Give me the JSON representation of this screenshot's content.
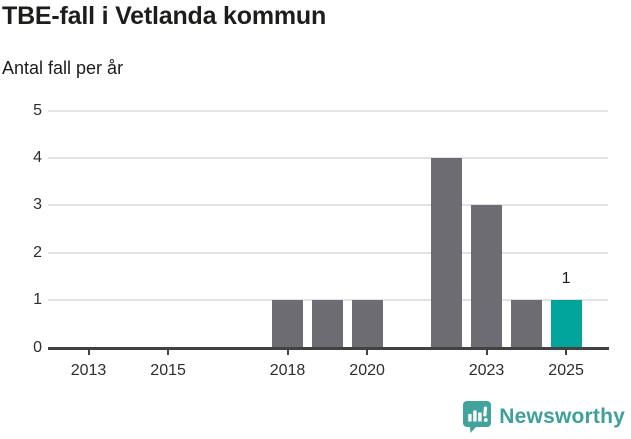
{
  "header": {
    "title": "TBE-fall i Vetlanda kommun",
    "subtitle": "Antal fall per år"
  },
  "chart_data": {
    "type": "bar",
    "title": "TBE-fall i Vetlanda kommun",
    "ylabel": "Antal fall per år",
    "x": [
      2012,
      2013,
      2014,
      2015,
      2016,
      2017,
      2018,
      2019,
      2020,
      2021,
      2022,
      2023,
      2024,
      2025
    ],
    "values": [
      0,
      0,
      0,
      0,
      0,
      0,
      1,
      1,
      1,
      0,
      4,
      3,
      1,
      1
    ],
    "highlight_year": 2025,
    "highlight_value_label": "1",
    "x_tick_years": [
      2013,
      2015,
      2018,
      2020,
      2023,
      2025
    ],
    "x_tick_labels": [
      "2013",
      "2015",
      "2018",
      "2020",
      "2023",
      "2025"
    ],
    "y_ticks": [
      0,
      1,
      2,
      3,
      4,
      5
    ],
    "y_tick_labels": [
      "0",
      "1",
      "2",
      "3",
      "4",
      "5"
    ],
    "ylim": [
      0,
      5
    ],
    "grid": true,
    "legend": "none",
    "colors": {
      "bar": "#6d6c72",
      "highlight_bar": "#00a49a",
      "gridline": "#e3e3e3",
      "axis": "#424242",
      "text": "#2e2e2e"
    }
  },
  "footer": {
    "brand": "Newsworthy",
    "logo_icon": "bar-chart-speech-bubble-icon",
    "brand_color": "#3f9f99"
  }
}
